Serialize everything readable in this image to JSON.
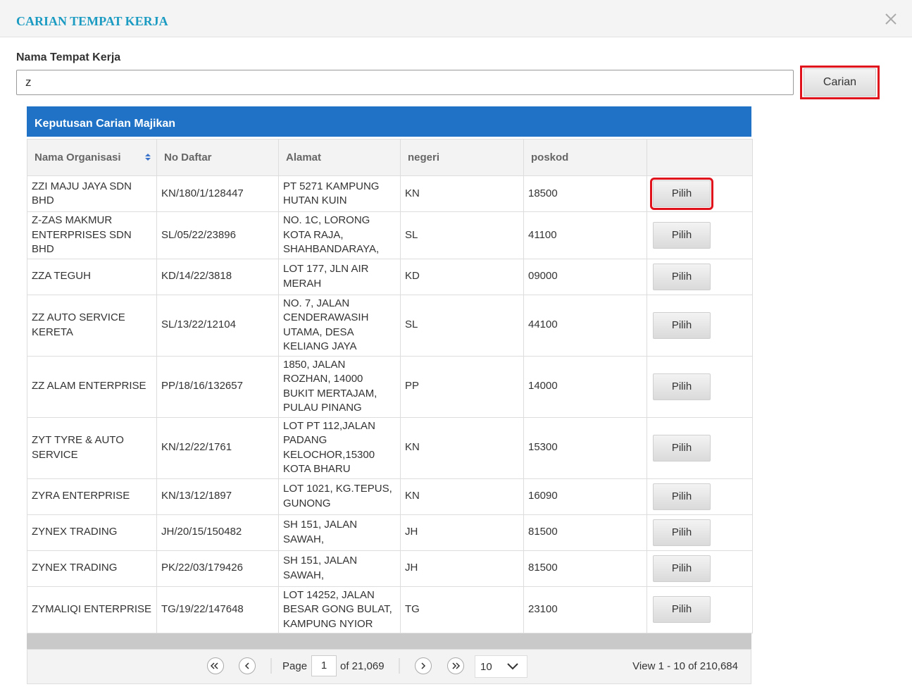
{
  "header": {
    "title": "CARIAN TEMPAT KERJA"
  },
  "search": {
    "label": "Nama Tempat Kerja",
    "value": "z",
    "button": "Carian"
  },
  "table": {
    "title": "Keputusan Carian Majikan",
    "columns": [
      "Nama Organisasi",
      "No Daftar",
      "Alamat",
      "negeri",
      "poskod"
    ],
    "rows": [
      [
        "ZZI MAJU JAYA SDN BHD",
        "KN/180/1/128447",
        "PT 5271 KAMPUNG HUTAN KUIN",
        "KN",
        "18500",
        "Pilih"
      ],
      [
        "Z-ZAS MAKMUR ENTERPRISES SDN BHD",
        "SL/05/22/23896",
        "NO. 1C, LORONG KOTA RAJA, SHAHBANDARAYA,",
        "SL",
        "41100",
        "Pilih"
      ],
      [
        "ZZA TEGUH",
        "KD/14/22/3818",
        "LOT 177, JLN AIR MERAH",
        "KD",
        "09000",
        "Pilih"
      ],
      [
        "ZZ AUTO SERVICE KERETA",
        "SL/13/22/12104",
        "NO. 7, JALAN CENDERAWASIH UTAMA, DESA KELIANG JAYA",
        "SL",
        "44100",
        "Pilih"
      ],
      [
        "ZZ ALAM ENTERPRISE",
        "PP/18/16/132657",
        "1850, JALAN ROZHAN, 14000 BUKIT MERTAJAM, PULAU PINANG",
        "PP",
        "14000",
        "Pilih"
      ],
      [
        "ZYT TYRE & AUTO SERVICE",
        "KN/12/22/1761",
        "LOT PT 112,JALAN PADANG KELOCHOR,15300 KOTA BHARU",
        "KN",
        "15300",
        "Pilih"
      ],
      [
        "ZYRA ENTERPRISE",
        "KN/13/12/1897",
        "LOT 1021, KG.TEPUS, GUNONG",
        "KN",
        "16090",
        "Pilih"
      ],
      [
        "ZYNEX TRADING",
        "JH/20/15/150482",
        "SH 151, JALAN SAWAH,",
        "JH",
        "81500",
        "Pilih"
      ],
      [
        "ZYNEX TRADING",
        "PK/22/03/179426",
        "SH 151, JALAN SAWAH,",
        "JH",
        "81500",
        "Pilih"
      ],
      [
        "ZYMALIQI ENTERPRISE",
        "TG/19/22/147648",
        "LOT 14252, JALAN BESAR GONG BULAT, KAMPUNG NYIOR",
        "TG",
        "23100",
        "Pilih"
      ]
    ]
  },
  "pager": {
    "page_label": "Page",
    "page": "1",
    "of": "of 21,069",
    "page_size": "10",
    "view": "View 1 - 10 of 210,684"
  }
}
